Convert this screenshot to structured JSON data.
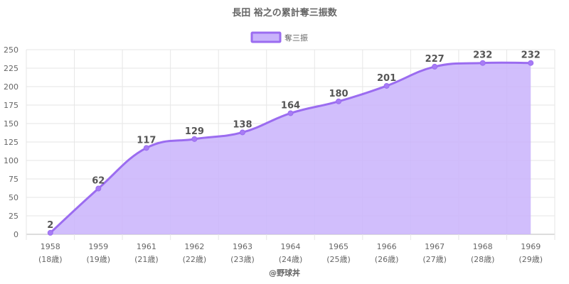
{
  "chart_data": {
    "type": "area",
    "title": "長田 裕之の累計奪三振数",
    "legend": {
      "position": "top",
      "label": "奪三振"
    },
    "categories": [
      "1958",
      "1959",
      "1961",
      "1962",
      "1963",
      "1964",
      "1965",
      "1966",
      "1967",
      "1968",
      "1969"
    ],
    "ages": [
      "(18歳)",
      "(19歳)",
      "(21歳)",
      "(22歳)",
      "(23歳)",
      "(24歳)",
      "(25歳)",
      "(26歳)",
      "(27歳)",
      "(28歳)",
      "(29歳)"
    ],
    "series": [
      {
        "name": "奪三振",
        "values": [
          2,
          62,
          117,
          129,
          138,
          164,
          180,
          201,
          227,
          232,
          232
        ]
      }
    ],
    "ylim": [
      0,
      250
    ],
    "yticks": [
      0,
      25,
      50,
      75,
      100,
      125,
      150,
      175,
      200,
      225,
      250
    ],
    "grid": true,
    "colors": {
      "line": "#9b6cf0",
      "fill": "#c9b3fb",
      "point": "#a77cf5",
      "grid": "#e6e6e6",
      "axis": "#bbbbbb"
    },
    "credit": "@野球丼"
  }
}
